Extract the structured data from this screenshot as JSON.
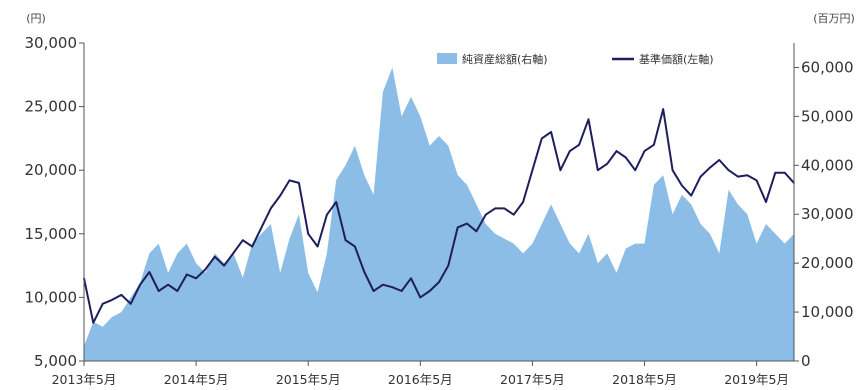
{
  "chart_data": {
    "type": "line",
    "x_type": "date",
    "left_axis": {
      "unit_label": "(円)",
      "ylim": [
        5000,
        30000
      ],
      "ticks": [
        5000,
        10000,
        15000,
        20000,
        25000,
        30000
      ],
      "tick_labels": [
        "5,000",
        "10,000",
        "15,000",
        "20,000",
        "25,000",
        "30,000"
      ]
    },
    "right_axis": {
      "unit_label": "(百万円)",
      "ylim": [
        0,
        65000
      ],
      "ticks": [
        0,
        10000,
        20000,
        30000,
        40000,
        50000,
        60000
      ],
      "tick_labels": [
        "0",
        "10,000",
        "20,000",
        "30,000",
        "40,000",
        "50,000",
        "60,000"
      ]
    },
    "x_axis": {
      "xlim": [
        "2013-05",
        "2019-09"
      ],
      "ticks": [
        "2013-05",
        "2014-05",
        "2015-05",
        "2016-05",
        "2017-05",
        "2018-05",
        "2019-05"
      ],
      "tick_labels": [
        "2013年5月",
        "2014年5月",
        "2015年5月",
        "2016年5月",
        "2017年5月",
        "2018年5月",
        "2019年5月"
      ]
    },
    "legend": {
      "placement": "top-right",
      "area_label": "純資産総額(右軸)",
      "line_label": "基準価額(左軸)"
    },
    "colors": {
      "area": "#8bbde6",
      "line": "#1e1f5c",
      "axis": "#555555"
    },
    "grid": false,
    "series": [
      {
        "name": "純資産総額(右軸)",
        "type": "area",
        "axis": "right",
        "x": [
          "2013-05",
          "2013-06",
          "2013-07",
          "2013-08",
          "2013-09",
          "2013-10",
          "2013-11",
          "2013-12",
          "2014-01",
          "2014-02",
          "2014-03",
          "2014-04",
          "2014-05",
          "2014-06",
          "2014-07",
          "2014-08",
          "2014-09",
          "2014-10",
          "2014-11",
          "2014-12",
          "2015-01",
          "2015-02",
          "2015-03",
          "2015-04",
          "2015-05",
          "2015-06",
          "2015-07",
          "2015-08",
          "2015-09",
          "2015-10",
          "2015-11",
          "2015-12",
          "2016-01",
          "2016-02",
          "2016-03",
          "2016-04",
          "2016-05",
          "2016-06",
          "2016-07",
          "2016-08",
          "2016-09",
          "2016-10",
          "2016-11",
          "2016-12",
          "2017-01",
          "2017-02",
          "2017-03",
          "2017-04",
          "2017-05",
          "2017-06",
          "2017-07",
          "2017-08",
          "2017-09",
          "2017-10",
          "2017-11",
          "2017-12",
          "2018-01",
          "2018-02",
          "2018-03",
          "2018-04",
          "2018-05",
          "2018-06",
          "2018-07",
          "2018-08",
          "2018-09",
          "2018-10",
          "2018-11",
          "2018-12",
          "2019-01",
          "2019-02",
          "2019-03",
          "2019-04",
          "2019-05",
          "2019-06",
          "2019-07",
          "2019-08",
          "2019-09"
        ],
        "values": [
          3000,
          8000,
          7000,
          9000,
          10000,
          13000,
          16000,
          22000,
          24000,
          18000,
          22000,
          24000,
          20000,
          18000,
          22000,
          20000,
          22000,
          17000,
          24000,
          26000,
          28000,
          18000,
          25000,
          30000,
          18000,
          14000,
          22000,
          37000,
          40000,
          44000,
          38000,
          34000,
          55000,
          60000,
          50000,
          54000,
          50000,
          44000,
          46000,
          44000,
          38000,
          36000,
          32000,
          28000,
          26000,
          25000,
          24000,
          22000,
          24000,
          28000,
          32000,
          28000,
          24000,
          22000,
          26000,
          20000,
          22000,
          18000,
          23000,
          24000,
          24000,
          36000,
          38000,
          30000,
          34000,
          32000,
          28000,
          26000,
          22000,
          35000,
          32000,
          30000,
          24000,
          28000,
          26000,
          24000,
          26000
        ]
      },
      {
        "name": "基準価額(左軸)",
        "type": "line",
        "axis": "left",
        "x": [
          "2013-05",
          "2013-06",
          "2013-07",
          "2013-08",
          "2013-09",
          "2013-10",
          "2013-11",
          "2013-12",
          "2014-01",
          "2014-02",
          "2014-03",
          "2014-04",
          "2014-05",
          "2014-06",
          "2014-07",
          "2014-08",
          "2014-09",
          "2014-10",
          "2014-11",
          "2014-12",
          "2015-01",
          "2015-02",
          "2015-03",
          "2015-04",
          "2015-05",
          "2015-06",
          "2015-07",
          "2015-08",
          "2015-09",
          "2015-10",
          "2015-11",
          "2015-12",
          "2016-01",
          "2016-02",
          "2016-03",
          "2016-04",
          "2016-05",
          "2016-06",
          "2016-07",
          "2016-08",
          "2016-09",
          "2016-10",
          "2016-11",
          "2016-12",
          "2017-01",
          "2017-02",
          "2017-03",
          "2017-04",
          "2017-05",
          "2017-06",
          "2017-07",
          "2017-08",
          "2017-09",
          "2017-10",
          "2017-11",
          "2017-12",
          "2018-01",
          "2018-02",
          "2018-03",
          "2018-04",
          "2018-05",
          "2018-06",
          "2018-07",
          "2018-08",
          "2018-09",
          "2018-10",
          "2018-11",
          "2018-12",
          "2019-01",
          "2019-02",
          "2019-03",
          "2019-04",
          "2019-05",
          "2019-06",
          "2019-07",
          "2019-08",
          "2019-09"
        ],
        "values": [
          11500,
          8000,
          9500,
          9800,
          10200,
          9500,
          11000,
          12000,
          10500,
          11000,
          10500,
          11800,
          11500,
          12200,
          13200,
          12500,
          13500,
          14500,
          14000,
          15500,
          17000,
          18000,
          19200,
          19000,
          15000,
          14000,
          16500,
          17500,
          14500,
          14000,
          12000,
          10500,
          11000,
          10800,
          10500,
          11500,
          10000,
          10500,
          11200,
          12500,
          15500,
          15800,
          15200,
          16500,
          17000,
          17000,
          16500,
          17500,
          20000,
          22500,
          23000,
          20000,
          21500,
          22000,
          24000,
          20000,
          20500,
          21500,
          21000,
          20000,
          21500,
          22000,
          24800,
          20000,
          18800,
          18000,
          19500,
          20200,
          20800,
          20000,
          19500,
          19600,
          19200,
          17500,
          19800,
          19800,
          19000
        ]
      }
    ]
  }
}
